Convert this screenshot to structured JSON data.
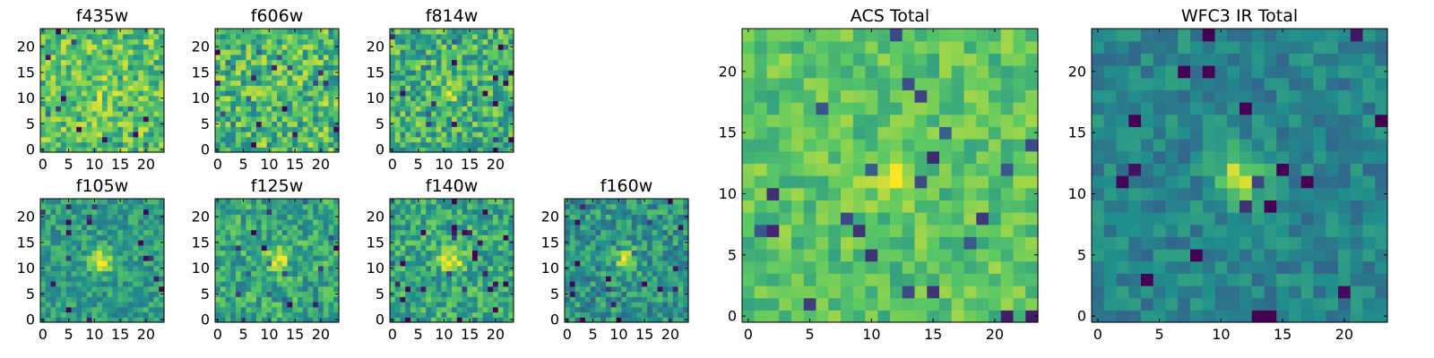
{
  "figure": {
    "colormap": "viridis",
    "colormap_stops": [
      "#440154",
      "#3b528b",
      "#21908d",
      "#5dc963",
      "#fde725"
    ]
  },
  "chart_data": [
    {
      "type": "heatmap",
      "title": "f435w",
      "grid_size": [
        24,
        24
      ],
      "xlim": [
        0,
        23
      ],
      "ylim": [
        0,
        23
      ],
      "x_ticks": [
        0,
        5,
        10,
        15,
        20
      ],
      "y_ticks": [
        0,
        5,
        10,
        15,
        20
      ],
      "center_peak": 0.08,
      "mean_level": 0.72,
      "noise": 0.22,
      "seed": 11
    },
    {
      "type": "heatmap",
      "title": "f606w",
      "grid_size": [
        24,
        24
      ],
      "xlim": [
        0,
        23
      ],
      "ylim": [
        0,
        23
      ],
      "x_ticks": [
        0,
        5,
        10,
        15,
        20
      ],
      "y_ticks": [
        0,
        5,
        10,
        15,
        20
      ],
      "center_peak": 0.08,
      "mean_level": 0.68,
      "noise": 0.25,
      "seed": 23
    },
    {
      "type": "heatmap",
      "title": "f814w",
      "grid_size": [
        24,
        24
      ],
      "xlim": [
        0,
        23
      ],
      "ylim": [
        0,
        23
      ],
      "x_ticks": [
        0,
        5,
        10,
        15,
        20
      ],
      "y_ticks": [
        0,
        5,
        10,
        15,
        20
      ],
      "center_peak": 0.22,
      "mean_level": 0.64,
      "noise": 0.24,
      "seed": 37
    },
    {
      "type": "heatmap",
      "title": "f105w",
      "grid_size": [
        24,
        24
      ],
      "xlim": [
        0,
        23
      ],
      "ylim": [
        0,
        23
      ],
      "x_ticks": [
        0,
        5,
        10,
        15,
        20
      ],
      "y_ticks": [
        0,
        5,
        10,
        15,
        20
      ],
      "center_peak": 0.45,
      "mean_level": 0.55,
      "noise": 0.16,
      "seed": 41
    },
    {
      "type": "heatmap",
      "title": "f125w",
      "grid_size": [
        24,
        24
      ],
      "xlim": [
        0,
        23
      ],
      "ylim": [
        0,
        23
      ],
      "x_ticks": [
        0,
        5,
        10,
        15,
        20
      ],
      "y_ticks": [
        0,
        5,
        10,
        15,
        20
      ],
      "center_peak": 0.4,
      "mean_level": 0.6,
      "noise": 0.2,
      "seed": 53
    },
    {
      "type": "heatmap",
      "title": "f140w",
      "grid_size": [
        24,
        24
      ],
      "xlim": [
        0,
        23
      ],
      "ylim": [
        0,
        23
      ],
      "x_ticks": [
        0,
        5,
        10,
        15,
        20
      ],
      "y_ticks": [
        0,
        5,
        10,
        15,
        20
      ],
      "center_peak": 0.42,
      "mean_level": 0.6,
      "noise": 0.2,
      "seed": 67
    },
    {
      "type": "heatmap",
      "title": "f160w",
      "grid_size": [
        24,
        24
      ],
      "xlim": [
        0,
        23
      ],
      "ylim": [
        0,
        23
      ],
      "x_ticks": [
        0,
        5,
        10,
        15,
        20
      ],
      "y_ticks": [
        0,
        5,
        10,
        15,
        20
      ],
      "center_peak": 0.4,
      "mean_level": 0.52,
      "noise": 0.2,
      "seed": 79
    },
    {
      "type": "heatmap",
      "title": "ACS Total",
      "grid_size": [
        24,
        24
      ],
      "xlim": [
        0,
        23
      ],
      "ylim": [
        0,
        23
      ],
      "x_ticks": [
        0,
        5,
        10,
        15,
        20
      ],
      "y_ticks": [
        0,
        5,
        10,
        15,
        20
      ],
      "center_peak": 0.25,
      "mean_level": 0.72,
      "noise": 0.14,
      "seed": 83
    },
    {
      "type": "heatmap",
      "title": "WFC3 IR Total",
      "grid_size": [
        24,
        24
      ],
      "xlim": [
        0,
        23
      ],
      "ylim": [
        0,
        23
      ],
      "x_ticks": [
        0,
        5,
        10,
        15,
        20
      ],
      "y_ticks": [
        0,
        5,
        10,
        15,
        20
      ],
      "center_peak": 0.42,
      "mean_level": 0.45,
      "noise": 0.12,
      "seed": 97
    }
  ]
}
